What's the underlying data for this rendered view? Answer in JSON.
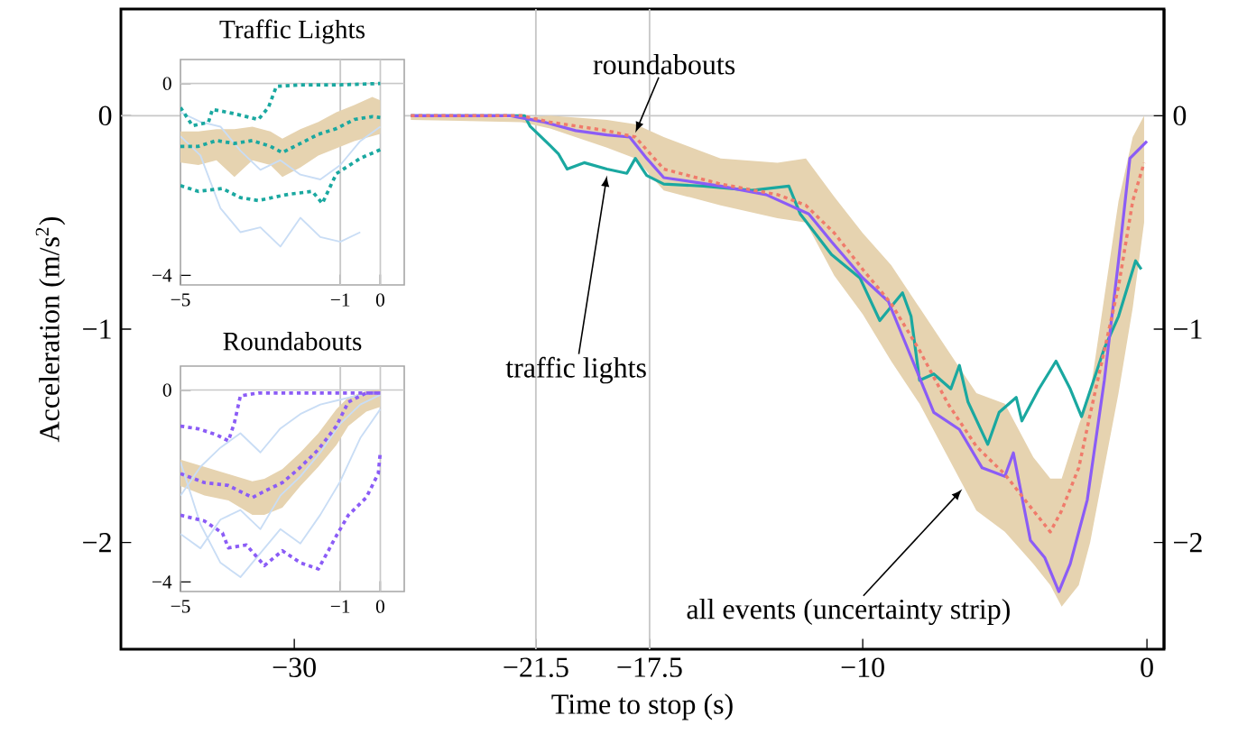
{
  "chart_data": [
    {
      "type": "line",
      "xlabel": "Time to stop (s)",
      "ylabel": "Acceleration (m/s$^{2}$)",
      "xlim": [
        -36.1,
        0.6
      ],
      "ylim": [
        -2.5,
        0.5
      ],
      "xticks": [
        {
          "value": -30,
          "label": "−30"
        },
        {
          "value": -21.5,
          "label": "−21.5"
        },
        {
          "value": -17.5,
          "label": "−17.5"
        },
        {
          "value": -10,
          "label": "−10"
        },
        0
      ],
      "yticks": [
        {
          "value": -2,
          "label": "−2"
        },
        {
          "value": -1,
          "label": "−1"
        },
        0
      ],
      "y2lim": [
        -2.5,
        0.5
      ],
      "y2ticks": [
        {
          "value": -2,
          "label": "−2"
        },
        {
          "value": -1,
          "label": "−1"
        },
        0
      ],
      "ref_lines": [
        {
          "axis": "x",
          "value": -21.5,
          "color": "#c8c8c8"
        },
        {
          "axis": "x",
          "value": -17.5,
          "color": "#c8c8c8"
        },
        {
          "axis": "y",
          "value": 0,
          "color": "#c8c8c8"
        }
      ],
      "annotations": [
        {
          "text": "roundabouts",
          "x": -18.0,
          "y": -0.08
        },
        {
          "text": "traffic lights",
          "x": -19.0,
          "y": -0.28
        },
        {
          "text": "all events (uncertainty strip)",
          "x": -6.5,
          "y": -1.75
        }
      ],
      "series": [
        {
          "color": "#1aa8a0",
          "line_style": "solid",
          "x": [
            -25.9,
            -21.9,
            -21.7,
            -21.0,
            -20.7,
            -20.4,
            -19.8,
            -19.0,
            -18.3,
            -18.0,
            -17.6,
            -17.0,
            -15.6,
            -13.9,
            -12.6,
            -12.2,
            -11.1,
            -10.1,
            -9.4,
            -8.6,
            -8.3,
            -8.0,
            -7.5,
            -6.9,
            -6.6,
            -6.3,
            -5.6,
            -5.2,
            -4.6,
            -4.4,
            -3.8,
            -3.2,
            -2.7,
            -2.3,
            -1.5,
            -1.0,
            -0.4,
            -0.2
          ],
          "values": [
            0,
            0,
            -0.05,
            -0.14,
            -0.18,
            -0.25,
            -0.22,
            -0.25,
            -0.27,
            -0.2,
            -0.28,
            -0.32,
            -0.33,
            -0.35,
            -0.33,
            -0.46,
            -0.65,
            -0.76,
            -0.96,
            -0.83,
            -0.94,
            -1.24,
            -1.21,
            -1.28,
            -1.17,
            -1.34,
            -1.54,
            -1.39,
            -1.32,
            -1.43,
            -1.28,
            -1.15,
            -1.28,
            -1.41,
            -1.09,
            -0.94,
            -0.68,
            -0.72
          ]
        },
        {
          "color": "#8b5cf6",
          "line_style": "solid",
          "x": [
            -25.9,
            -22.4,
            -21.2,
            -20.1,
            -19.0,
            -18.2,
            -17.6,
            -17.0,
            -15.0,
            -13.4,
            -11.9,
            -11.1,
            -10.0,
            -9.1,
            -8.3,
            -7.5,
            -6.6,
            -5.8,
            -5.0,
            -4.7,
            -4.1,
            -3.6,
            -3.1,
            -2.7,
            -2.1,
            -1.5,
            -1.0,
            -0.6,
            0
          ],
          "values": [
            0,
            0,
            -0.03,
            -0.07,
            -0.09,
            -0.1,
            -0.2,
            -0.29,
            -0.33,
            -0.37,
            -0.46,
            -0.59,
            -0.76,
            -0.87,
            -1.13,
            -1.39,
            -1.47,
            -1.65,
            -1.69,
            -1.58,
            -1.99,
            -2.07,
            -2.23,
            -2.1,
            -1.8,
            -1.24,
            -0.68,
            -0.2,
            -0.12
          ]
        },
        {
          "color": "#f07b6b",
          "line_style": "dotted",
          "x": [
            -25.9,
            -22,
            -21,
            -19,
            -18,
            -17,
            -15,
            -13,
            -12,
            -11,
            -10,
            -9,
            -8,
            -7,
            -6,
            -5,
            -4,
            -3.4,
            -3,
            -2.4,
            -2,
            -1.5,
            -1,
            -0.5,
            -0.1
          ],
          "values": [
            0,
            0,
            -0.03,
            -0.07,
            -0.1,
            -0.25,
            -0.32,
            -0.37,
            -0.42,
            -0.55,
            -0.72,
            -0.88,
            -1.1,
            -1.35,
            -1.55,
            -1.68,
            -1.85,
            -1.95,
            -1.85,
            -1.65,
            -1.4,
            -1.1,
            -0.8,
            -0.4,
            -0.22
          ],
          "lower": [
            -0.02,
            -0.03,
            -0.06,
            -0.15,
            -0.2,
            -0.35,
            -0.42,
            -0.48,
            -0.5,
            -0.75,
            -0.93,
            -1.15,
            -1.35,
            -1.6,
            -1.85,
            -1.95,
            -2.1,
            -2.2,
            -2.3,
            -2.2,
            -2.0,
            -1.65,
            -1.3,
            -0.9,
            -0.5
          ],
          "upper": [
            0,
            -0.01,
            0,
            -0.02,
            -0.04,
            -0.1,
            -0.2,
            -0.22,
            -0.2,
            -0.38,
            -0.55,
            -0.7,
            -0.9,
            -1.1,
            -1.3,
            -1.35,
            -1.6,
            -1.7,
            -1.7,
            -1.45,
            -1.3,
            -0.85,
            -0.4,
            -0.1,
            0
          ]
        }
      ]
    },
    {
      "type": "line",
      "title": "Traffic Lights",
      "xlim": [
        -5,
        0.6
      ],
      "ylim": [
        -4.2,
        0.5
      ],
      "xticks": [
        {
          "value": -5,
          "label": "−5"
        },
        {
          "value": -1,
          "label": "−1"
        },
        0
      ],
      "yticks": [
        {
          "value": -4,
          "label": "−4"
        },
        0
      ],
      "ref_lines": [
        {
          "axis": "x",
          "value": -1,
          "color": "#c8c8c8"
        },
        {
          "axis": "x",
          "value": 0,
          "color": "#c8c8c8"
        },
        {
          "axis": "y",
          "value": 0,
          "color": "#c8c8c8"
        }
      ],
      "series": [
        {
          "color": "#c9ddf5",
          "line_style": "solid",
          "x": [
            -5,
            -4.5,
            -4,
            -3.5,
            -3,
            -2.5,
            -2,
            -1.5,
            -1,
            -0.5
          ],
          "values": [
            -1.1,
            -1.5,
            -2.6,
            -3.1,
            -3.0,
            -3.4,
            -2.8,
            -3.2,
            -3.3,
            -3.1
          ]
        },
        {
          "color": "#c9ddf5",
          "line_style": "solid",
          "x": [
            -5,
            -4.5,
            -4,
            -3.5,
            -3,
            -2.5,
            -2,
            -1.5,
            -1,
            -0.5,
            0
          ],
          "values": [
            -0.6,
            -0.8,
            -0.9,
            -1.4,
            -1.8,
            -1.6,
            -1.9,
            -2.0,
            -1.7,
            -1.2,
            -0.9
          ]
        },
        {
          "color": "#1aa8a0",
          "line_style": "dotted",
          "x": [
            -5,
            -4.7,
            -4.3,
            -4.2,
            -3.65,
            -3.05,
            -2.8,
            -2.6,
            -2.0,
            -1.1,
            0
          ],
          "values": [
            -0.5,
            -0.88,
            -0.81,
            -0.54,
            -0.63,
            -0.75,
            -0.5,
            -0.06,
            -0.03,
            -0.03,
            0
          ]
        },
        {
          "color": "#1aa8a0",
          "line_style": "dotted",
          "x": [
            -5,
            -4.55,
            -3.95,
            -3.5,
            -3.05,
            -2.3,
            -1.7,
            -1.45,
            -1.1,
            -0.5,
            0
          ],
          "values": [
            -2.13,
            -2.25,
            -2.19,
            -2.38,
            -2.44,
            -2.31,
            -2.25,
            -2.5,
            -1.88,
            -1.56,
            -1.38
          ]
        },
        {
          "color": "#1aa8a0",
          "line_style": "dotted",
          "x": [
            -5,
            -4.55,
            -4.1,
            -3.65,
            -3.2,
            -2.75,
            -2.45,
            -2.0,
            -1.55,
            -1.1,
            -0.65,
            -0.2,
            0
          ],
          "values": [
            -1.31,
            -1.31,
            -1.19,
            -1.25,
            -1.19,
            -1.31,
            -1.44,
            -1.25,
            -1.06,
            -0.94,
            -0.75,
            -0.69,
            -0.71
          ],
          "lower": [
            -1.65,
            -1.7,
            -1.6,
            -1.95,
            -1.6,
            -1.7,
            -1.95,
            -1.75,
            -1.5,
            -1.35,
            -1.2,
            -1.1,
            -1.05
          ],
          "upper": [
            -1.0,
            -1.0,
            -0.95,
            -0.95,
            -0.9,
            -1.0,
            -1.15,
            -0.95,
            -0.8,
            -0.6,
            -0.45,
            -0.28,
            -0.35
          ]
        }
      ]
    },
    {
      "type": "line",
      "title": "Roundabouts",
      "xlim": [
        -5,
        0.6
      ],
      "ylim": [
        -4.2,
        0.5
      ],
      "xticks": [
        {
          "value": -5,
          "label": "−5"
        },
        {
          "value": -1,
          "label": "−1"
        },
        0
      ],
      "yticks": [
        {
          "value": -4,
          "label": "−4"
        },
        0
      ],
      "ref_lines": [
        {
          "axis": "x",
          "value": -1,
          "color": "#c8c8c8"
        },
        {
          "axis": "x",
          "value": 0,
          "color": "#c8c8c8"
        },
        {
          "axis": "y",
          "value": 0,
          "color": "#c8c8c8"
        }
      ],
      "series": [
        {
          "color": "#c9ddf5",
          "line_style": "solid",
          "x": [
            -5,
            -4.5,
            -4,
            -3.5,
            -3,
            -2.5,
            -2,
            -1.5,
            -1,
            -0.5,
            0
          ],
          "values": [
            -1.5,
            -2.8,
            -3.6,
            -3.9,
            -3.4,
            -2.9,
            -3.2,
            -2.6,
            -1.9,
            -1.0,
            -0.4
          ]
        },
        {
          "color": "#c9ddf5",
          "line_style": "solid",
          "x": [
            -5,
            -4.5,
            -4,
            -3.5,
            -3,
            -2.5,
            -2,
            -1.5,
            -1,
            -0.5,
            0
          ],
          "values": [
            -2.2,
            -1.6,
            -1.2,
            -0.9,
            -1.3,
            -0.8,
            -0.5,
            -0.3,
            -0.2,
            -0.1,
            -0.05
          ]
        },
        {
          "color": "#c9ddf5",
          "line_style": "solid",
          "x": [
            -5,
            -4.5,
            -4,
            -3.5,
            -3,
            -2.5,
            -2,
            -1.5,
            -1,
            -0.5,
            0
          ],
          "values": [
            -3.0,
            -3.3,
            -2.7,
            -2.5,
            -2.9,
            -2.2,
            -1.8,
            -1.3,
            -0.7,
            -0.3,
            -0.1
          ]
        },
        {
          "color": "#8b5cf6",
          "line_style": "dotted",
          "x": [
            -5,
            -4.55,
            -4.1,
            -3.8,
            -3.65,
            -3.5,
            -3.05,
            -1.1,
            0
          ],
          "values": [
            -0.75,
            -0.81,
            -0.93,
            -1.06,
            -0.68,
            -0.12,
            -0.06,
            -0.06,
            -0.06
          ]
        },
        {
          "color": "#8b5cf6",
          "line_style": "dotted",
          "x": [
            -5,
            -4.4,
            -3.95,
            -3.8,
            -3.35,
            -2.9,
            -2.45,
            -2.0,
            -1.55,
            -1.3,
            -1.1,
            -0.8,
            -0.35,
            -0.05,
            0
          ],
          "values": [
            -2.61,
            -2.73,
            -2.98,
            -3.29,
            -3.23,
            -3.66,
            -3.35,
            -3.6,
            -3.73,
            -3.35,
            -3.04,
            -2.61,
            -2.24,
            -1.74,
            -1.3
          ]
        },
        {
          "color": "#8b5cf6",
          "line_style": "dotted",
          "x": [
            -5,
            -4.4,
            -3.8,
            -3.2,
            -2.9,
            -2.45,
            -2.0,
            -1.55,
            -1.1,
            -0.8,
            -0.35,
            0
          ],
          "values": [
            -1.74,
            -1.93,
            -1.99,
            -2.24,
            -2.11,
            -1.93,
            -1.61,
            -1.24,
            -0.75,
            -0.25,
            -0.06,
            -0.06
          ],
          "lower": [
            -2.0,
            -2.2,
            -2.3,
            -2.6,
            -2.6,
            -2.45,
            -2.0,
            -1.6,
            -1.15,
            -0.75,
            -0.45,
            -0.35
          ],
          "upper": [
            -1.45,
            -1.6,
            -1.75,
            -1.9,
            -1.85,
            -1.65,
            -1.3,
            -0.9,
            -0.4,
            -0.15,
            -0.02,
            0
          ]
        }
      ]
    }
  ]
}
